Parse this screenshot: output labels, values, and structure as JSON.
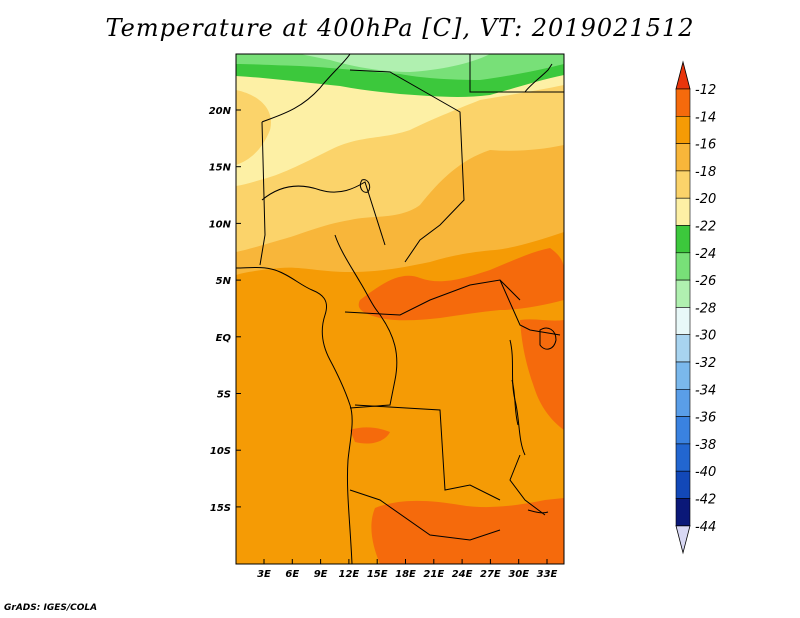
{
  "title": "Temperature at 400hPa [C], VT: 2019021512",
  "credit": "GrADS: IGES/COLA",
  "map": {
    "lon_labels": [
      "3E",
      "6E",
      "9E",
      "12E",
      "15E",
      "18E",
      "21E",
      "24E",
      "27E",
      "30E",
      "33E"
    ],
    "lat_labels": [
      "20N",
      "15N",
      "10N",
      "5N",
      "EQ",
      "5S",
      "10S",
      "15S"
    ],
    "colors": {
      "c12_14": "#f56a0c",
      "c14_16": "#f59b05",
      "c16_18": "#f8b63a",
      "c18_20": "#fbd36a",
      "c20_22": "#fdf0a5",
      "c22_24": "#3cc83c",
      "c24_26": "#78e078",
      "c26_28": "#b0f0b0",
      "coast": "#000000"
    }
  },
  "colorbar": {
    "labels": [
      "-12",
      "-14",
      "-16",
      "-18",
      "-20",
      "-22",
      "-24",
      "-26",
      "-28",
      "-30",
      "-32",
      "-34",
      "-36",
      "-38",
      "-40",
      "-42",
      "-44"
    ],
    "colors": [
      "#e8350c",
      "#f56a0c",
      "#f59b05",
      "#f8b63a",
      "#fbd36a",
      "#fdf0a5",
      "#3cc83c",
      "#78e078",
      "#b0f0b0",
      "#e8f8f8",
      "#a8d4f0",
      "#7ab8ec",
      "#5a9ee8",
      "#3a82e0",
      "#2266d0",
      "#1248b8",
      "#0a1878",
      "#d8d8f4"
    ]
  }
}
